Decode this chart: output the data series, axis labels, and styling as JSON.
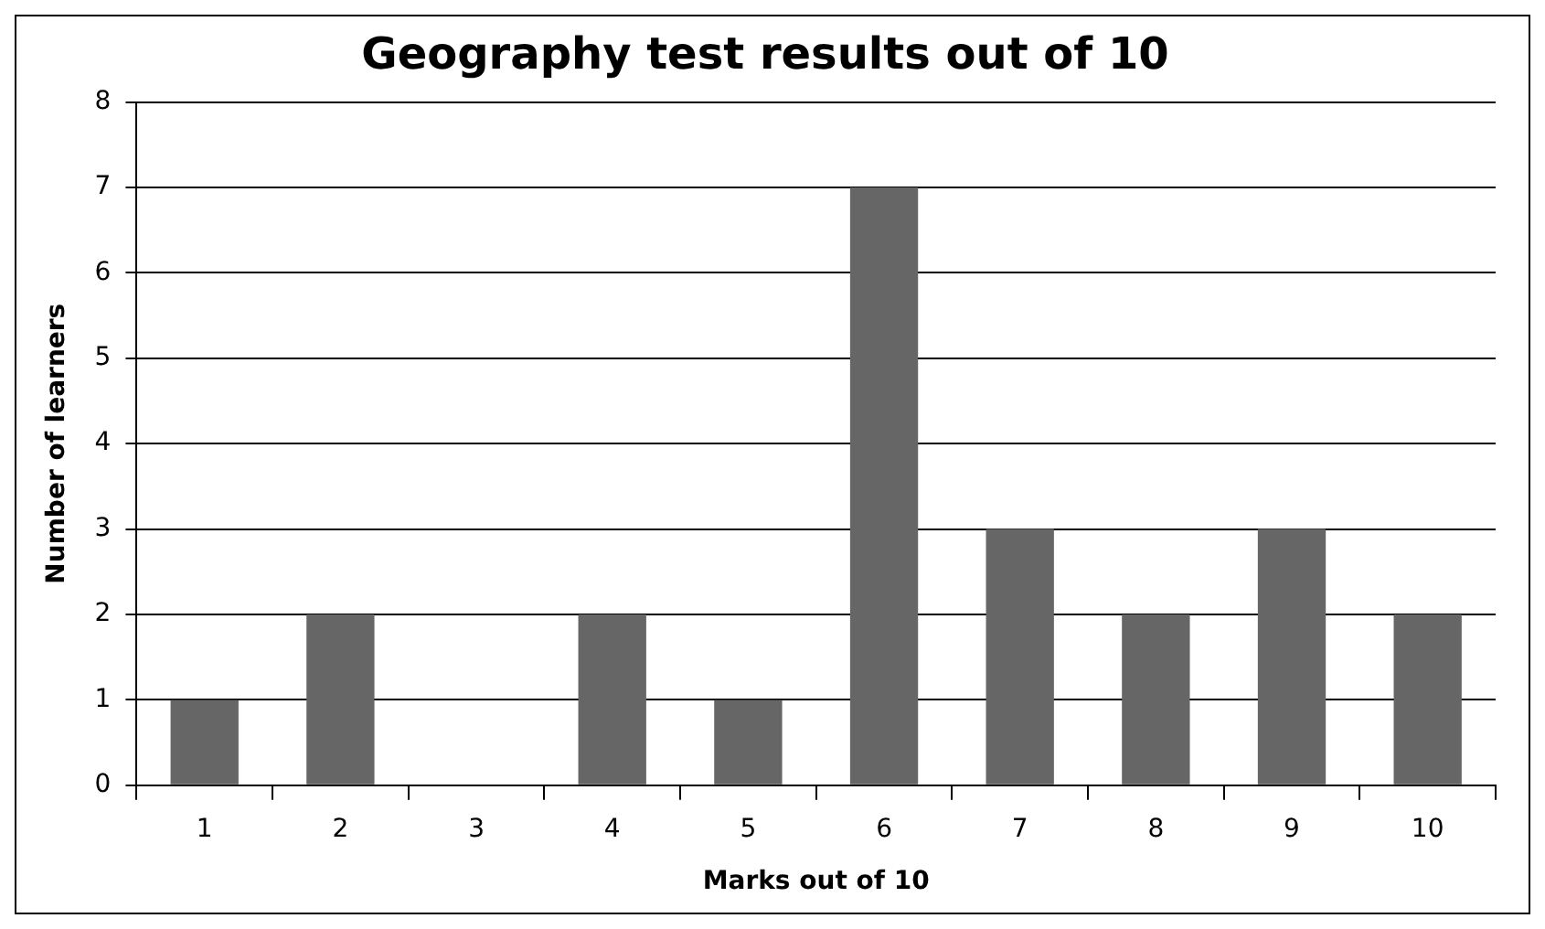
{
  "chart_data": {
    "type": "bar",
    "title": "Geography test results out of 10",
    "xlabel": "Marks out of 10",
    "ylabel": "Number of learners",
    "categories": [
      "1",
      "2",
      "3",
      "4",
      "5",
      "6",
      "7",
      "8",
      "9",
      "10"
    ],
    "values": [
      1,
      2,
      0,
      2,
      1,
      7,
      3,
      2,
      3,
      2
    ],
    "color": "#666666",
    "ylim": [
      0,
      8
    ],
    "yticks": [
      0,
      1,
      2,
      3,
      4,
      5,
      6,
      7,
      8
    ],
    "grid": "y",
    "legend": false
  }
}
